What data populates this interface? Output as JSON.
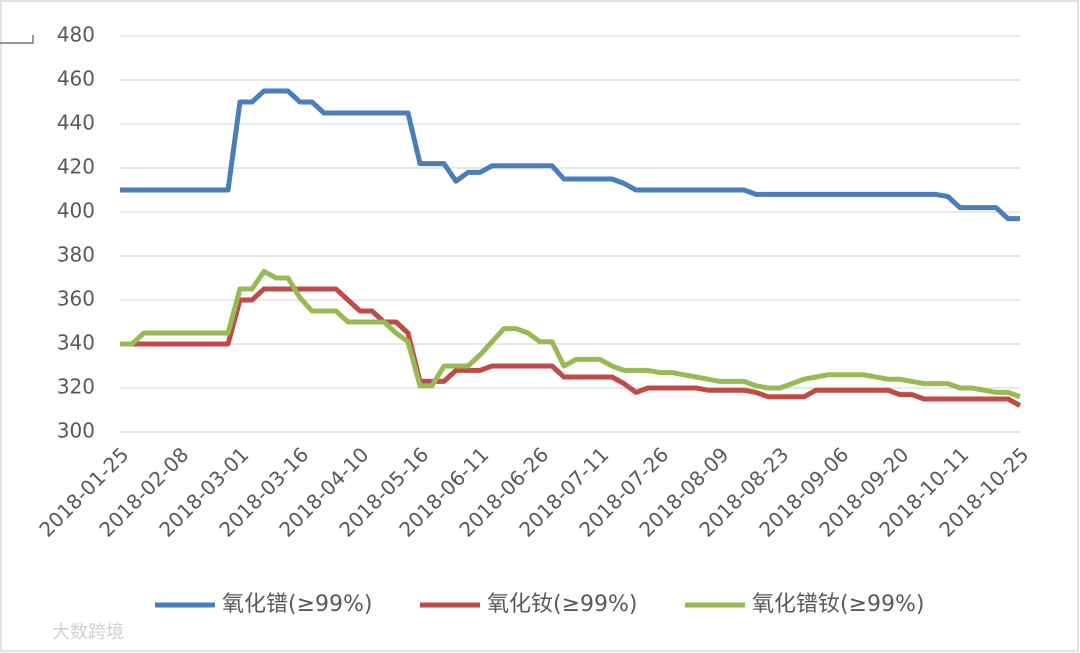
{
  "chart_data": {
    "type": "line",
    "categories": [
      "2018-01-25",
      null,
      null,
      null,
      null,
      "2018-02-08",
      null,
      null,
      null,
      null,
      "2018-03-01",
      null,
      null,
      null,
      null,
      "2018-03-16",
      null,
      null,
      null,
      null,
      "2018-04-10",
      null,
      null,
      null,
      null,
      "2018-05-16",
      null,
      null,
      null,
      null,
      "2018-06-11",
      null,
      null,
      null,
      null,
      "2018-06-26",
      null,
      null,
      null,
      null,
      "2018-07-11",
      null,
      null,
      null,
      null,
      "2018-07-26",
      null,
      null,
      null,
      null,
      "2018-08-09",
      null,
      null,
      null,
      null,
      "2018-08-23",
      null,
      null,
      null,
      null,
      "2018-09-06",
      null,
      null,
      null,
      null,
      "2018-09-20",
      null,
      null,
      null,
      null,
      "2018-10-11",
      null,
      null,
      null,
      null,
      "2018-10-25"
    ],
    "series": [
      {
        "name": "氧化镨(≥99%)",
        "color": "#4a7ebb",
        "values": [
          410,
          410,
          410,
          410,
          410,
          410,
          410,
          410,
          410,
          410,
          450,
          450,
          455,
          455,
          455,
          450,
          450,
          445,
          445,
          445,
          445,
          445,
          445,
          445,
          445,
          422,
          422,
          422,
          414,
          418,
          418,
          421,
          421,
          421,
          421,
          421,
          421,
          415,
          415,
          415,
          415,
          415,
          413,
          410,
          410,
          410,
          410,
          410,
          410,
          410,
          410,
          410,
          410,
          408,
          408,
          408,
          408,
          408,
          408,
          408,
          408,
          408,
          408,
          408,
          408,
          408,
          408,
          408,
          408,
          407,
          402,
          402,
          402,
          402,
          397,
          397
        ]
      },
      {
        "name": "氧化钕(≥99%)",
        "color": "#be4b48",
        "values": [
          340,
          340,
          340,
          340,
          340,
          340,
          340,
          340,
          340,
          340,
          360,
          360,
          365,
          365,
          365,
          365,
          365,
          365,
          365,
          360,
          355,
          355,
          350,
          350,
          345,
          323,
          323,
          323,
          328,
          328,
          328,
          330,
          330,
          330,
          330,
          330,
          330,
          325,
          325,
          325,
          325,
          325,
          322,
          318,
          320,
          320,
          320,
          320,
          320,
          319,
          319,
          319,
          319,
          318,
          316,
          316,
          316,
          316,
          319,
          319,
          319,
          319,
          319,
          319,
          319,
          317,
          317,
          315,
          315,
          315,
          315,
          315,
          315,
          315,
          315,
          312
        ]
      },
      {
        "name": "氧化镨钕(≥99%)",
        "color": "#98b954",
        "values": [
          340,
          340,
          345,
          345,
          345,
          345,
          345,
          345,
          345,
          345,
          365,
          365,
          373,
          370,
          370,
          361,
          355,
          355,
          355,
          350,
          350,
          350,
          350,
          345,
          341,
          321,
          321,
          330,
          330,
          330,
          335,
          341,
          347,
          347,
          345,
          341,
          341,
          330,
          333,
          333,
          333,
          330,
          328,
          328,
          328,
          327,
          327,
          326,
          325,
          324,
          323,
          323,
          323,
          321,
          320,
          320,
          322,
          324,
          325,
          326,
          326,
          326,
          326,
          325,
          324,
          324,
          323,
          322,
          322,
          322,
          320,
          320,
          319,
          318,
          318,
          316
        ]
      }
    ],
    "ylim": [
      300,
      480
    ],
    "yticks": [
      300,
      320,
      340,
      360,
      380,
      400,
      420,
      440,
      460,
      480
    ],
    "grid": true,
    "legend": "bottom",
    "watermark": "大数跨境"
  }
}
